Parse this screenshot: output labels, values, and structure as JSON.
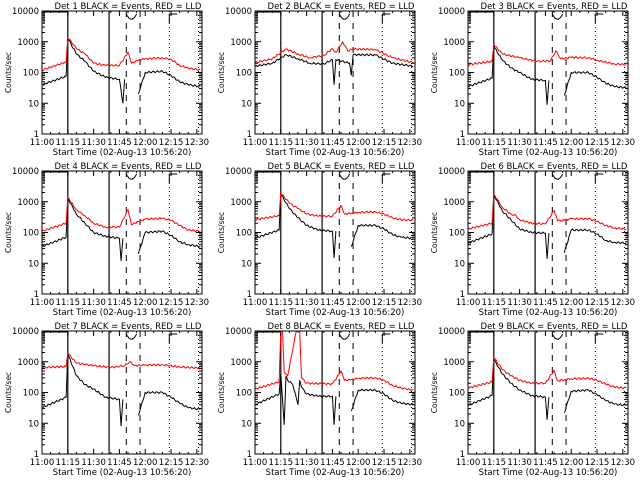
{
  "figure": {
    "xlabel": "Start Time (02-Aug-13 10:56:20)",
    "ylabel": "Counts/sec",
    "legend_text": "BLACK = Events, RED = LLD",
    "colors": {
      "events": "#000000",
      "lld": "#ff0000",
      "axes": "#000000"
    }
  },
  "chart_data": [
    {
      "type": "line",
      "title": "Det 1",
      "xlabel": "Start Time (02-Aug-13 10:56:20)",
      "ylabel": "Counts/sec",
      "yscale": "log",
      "ylim": [
        1,
        10000
      ],
      "yticks": [
        "1",
        "10",
        "100",
        "1000",
        "10000"
      ],
      "xlim": [
        "11:00",
        "12:33"
      ],
      "xticks": [
        "11:00",
        "11:15",
        "11:30",
        "11:45",
        "12:00",
        "12:15",
        "12:30"
      ],
      "markers": {
        "solid": [
          "11:15",
          "11:39"
        ],
        "dashed": [
          "11:49",
          "11:57"
        ],
        "dotted": [
          "12:14",
          "12:31"
        ],
        "labels": [
          "I",
          "S",
          "E"
        ]
      },
      "series": [
        {
          "name": "Events (BLACK)",
          "x_min": [
            0,
            14,
            15,
            20,
            25,
            30,
            37,
            45,
            47,
            48,
            55,
            56,
            60,
            70,
            75,
            80,
            85,
            92
          ],
          "values": [
            40,
            75,
            1300,
            400,
            230,
            110,
            70,
            60,
            10,
            60,
            null,
            20,
            100,
            110,
            80,
            50,
            40,
            35
          ]
        },
        {
          "name": "LLD (RED)",
          "x_min": [
            0,
            14,
            15,
            20,
            25,
            30,
            37,
            45,
            50,
            52,
            56,
            60,
            70,
            75,
            80,
            85,
            92
          ],
          "values": [
            120,
            220,
            1400,
            600,
            400,
            200,
            170,
            170,
            450,
            200,
            250,
            280,
            300,
            270,
            170,
            140,
            120
          ]
        }
      ]
    },
    {
      "type": "line",
      "title": "Det 2",
      "yscale": "log",
      "ylim": [
        1,
        10000
      ],
      "xticks": [
        "11:00",
        "11:15",
        "11:30",
        "11:45",
        "12:00",
        "12:15",
        "12:30"
      ],
      "series": [
        {
          "name": "Events (BLACK)",
          "x_min": [
            0,
            10,
            18,
            25,
            32,
            40,
            45,
            46,
            47,
            55,
            56,
            57,
            70,
            80,
            92
          ],
          "values": [
            160,
            200,
            380,
            280,
            200,
            190,
            260,
            40,
            260,
            200,
            80,
            380,
            370,
            200,
            160
          ]
        },
        {
          "name": "LLD (RED)",
          "x_min": [
            0,
            10,
            18,
            25,
            32,
            40,
            45,
            47,
            51,
            54,
            57,
            70,
            80,
            92
          ],
          "values": [
            210,
            280,
            580,
            400,
            300,
            360,
            600,
            450,
            1000,
            500,
            580,
            560,
            300,
            210
          ]
        }
      ]
    },
    {
      "type": "line",
      "title": "Det 3",
      "yscale": "log",
      "ylim": [
        1,
        10000
      ],
      "xticks": [
        "11:00",
        "11:15",
        "11:30",
        "11:45",
        "12:00",
        "12:15",
        "12:30"
      ],
      "series": [
        {
          "name": "Events (BLACK)",
          "x_min": [
            0,
            14,
            15,
            20,
            25,
            30,
            37,
            45,
            46,
            47,
            55,
            56,
            60,
            70,
            75,
            80,
            85,
            92
          ],
          "values": [
            35,
            65,
            700,
            250,
            140,
            100,
            60,
            55,
            9,
            55,
            null,
            18,
            100,
            100,
            70,
            45,
            35,
            32
          ]
        },
        {
          "name": "LLD (RED)",
          "x_min": [
            0,
            14,
            15,
            20,
            30,
            40,
            48,
            51,
            54,
            60,
            70,
            75,
            85,
            92
          ],
          "values": [
            180,
            230,
            800,
            400,
            300,
            230,
            240,
            500,
            280,
            310,
            300,
            250,
            190,
            180
          ]
        }
      ]
    },
    {
      "type": "line",
      "title": "Det 4",
      "yscale": "log",
      "ylim": [
        1,
        10000
      ],
      "xticks": [
        "11:00",
        "11:15",
        "11:30",
        "11:45",
        "12:00",
        "12:15",
        "12:30"
      ],
      "series": [
        {
          "name": "Events (BLACK)",
          "x_min": [
            0,
            14,
            15,
            20,
            25,
            30,
            37,
            45,
            46,
            47,
            55,
            56,
            60,
            70,
            75,
            80,
            85,
            92
          ],
          "values": [
            35,
            70,
            1300,
            400,
            200,
            100,
            75,
            65,
            12,
            65,
            null,
            20,
            100,
            110,
            80,
            50,
            40,
            35
          ]
        },
        {
          "name": "LLD (RED)",
          "x_min": [
            0,
            14,
            15,
            20,
            25,
            30,
            37,
            45,
            50,
            52,
            56,
            60,
            70,
            75,
            80,
            85,
            92
          ],
          "values": [
            110,
            200,
            1400,
            550,
            350,
            200,
            150,
            150,
            550,
            180,
            230,
            270,
            290,
            250,
            170,
            120,
            110
          ]
        }
      ]
    },
    {
      "type": "line",
      "title": "Det 5",
      "yscale": "log",
      "ylim": [
        1,
        10000
      ],
      "xticks": [
        "11:00",
        "11:15",
        "11:30",
        "11:45",
        "12:00",
        "12:15",
        "12:30"
      ],
      "series": [
        {
          "name": "Events (BLACK)",
          "x_min": [
            0,
            14,
            15,
            20,
            25,
            30,
            37,
            45,
            46,
            47,
            55,
            56,
            60,
            70,
            75,
            80,
            85,
            92
          ],
          "values": [
            65,
            120,
            1800,
            600,
            300,
            170,
            120,
            110,
            15,
            110,
            null,
            35,
            170,
            170,
            130,
            85,
            70,
            65
          ]
        },
        {
          "name": "LLD (RED)",
          "x_min": [
            0,
            14,
            15,
            20,
            25,
            30,
            37,
            45,
            50,
            52,
            56,
            60,
            70,
            75,
            80,
            85,
            92
          ],
          "values": [
            260,
            350,
            1900,
            900,
            600,
            400,
            340,
            340,
            750,
            400,
            420,
            450,
            470,
            400,
            300,
            260,
            250
          ]
        }
      ]
    },
    {
      "type": "line",
      "title": "Det 6",
      "yscale": "log",
      "ylim": [
        1,
        10000
      ],
      "xticks": [
        "11:00",
        "11:15",
        "11:30",
        "11:45",
        "12:00",
        "12:15",
        "12:30"
      ],
      "series": [
        {
          "name": "Events (BLACK)",
          "x_min": [
            0,
            14,
            15,
            20,
            25,
            30,
            37,
            45,
            46,
            47,
            55,
            56,
            60,
            70,
            75,
            80,
            85,
            92
          ],
          "values": [
            45,
            90,
            1700,
            500,
            260,
            130,
            100,
            95,
            14,
            95,
            null,
            22,
            120,
            120,
            90,
            55,
            48,
            45
          ]
        },
        {
          "name": "LLD (RED)",
          "x_min": [
            0,
            14,
            15,
            20,
            25,
            28,
            30,
            37,
            45,
            50,
            52,
            56,
            60,
            70,
            75,
            80,
            85,
            92
          ],
          "values": [
            130,
            200,
            1800,
            650,
            400,
            350,
            260,
            200,
            190,
            520,
            240,
            250,
            280,
            280,
            230,
            170,
            140,
            130
          ]
        }
      ]
    },
    {
      "type": "line",
      "title": "Det 7",
      "yscale": "log",
      "ylim": [
        1,
        10000
      ],
      "xticks": [
        "11:00",
        "11:15",
        "11:30",
        "11:45",
        "12:00",
        "12:15",
        "12:30"
      ],
      "series": [
        {
          "name": "Events (BLACK)",
          "x_min": [
            0,
            14,
            15,
            20,
            25,
            30,
            37,
            45,
            46,
            47,
            55,
            56,
            60,
            70,
            75,
            80,
            85,
            92
          ],
          "values": [
            32,
            70,
            1800,
            350,
            180,
            130,
            70,
            60,
            8,
            60,
            null,
            18,
            100,
            100,
            70,
            45,
            32,
            28
          ]
        },
        {
          "name": "LLD (RED)",
          "x_min": [
            0,
            14,
            15,
            20,
            30,
            40,
            48,
            51,
            54,
            60,
            70,
            80,
            92
          ],
          "values": [
            650,
            700,
            1900,
            900,
            750,
            650,
            750,
            1000,
            750,
            780,
            800,
            680,
            620
          ]
        }
      ]
    },
    {
      "type": "line",
      "title": "Det 8",
      "yscale": "log",
      "ylim": [
        1,
        10000
      ],
      "xticks": [
        "11:00",
        "11:15",
        "11:30",
        "11:45",
        "12:00",
        "12:15",
        "12:30"
      ],
      "series": [
        {
          "name": "Events (BLACK)",
          "x_min": [
            0,
            14,
            15,
            17,
            18,
            19,
            22,
            25,
            26,
            27,
            30,
            37,
            45,
            46,
            47,
            55,
            56,
            60,
            70,
            75,
            80,
            85,
            92
          ],
          "values": [
            40,
            90,
            400,
            9,
            350,
            250,
            180,
            40,
            250,
            150,
            90,
            75,
            75,
            9,
            75,
            null,
            25,
            120,
            120,
            90,
            55,
            45,
            40
          ]
        },
        {
          "name": "LLD (RED)",
          "x_min": [
            0,
            14,
            15,
            16,
            17,
            18,
            19,
            24,
            25,
            26,
            27,
            30,
            45,
            50,
            52,
            56,
            60,
            70,
            75,
            80,
            85,
            92
          ],
          "values": [
            130,
            220,
            10000,
            10000,
            450,
            400,
            350,
            10000,
            10000,
            10000,
            300,
            200,
            190,
            500,
            250,
            260,
            290,
            300,
            250,
            170,
            140,
            120
          ]
        }
      ]
    },
    {
      "type": "line",
      "title": "Det 9",
      "yscale": "log",
      "ylim": [
        1,
        10000
      ],
      "xticks": [
        "11:00",
        "11:15",
        "11:30",
        "11:45",
        "12:00",
        "12:15",
        "12:30"
      ],
      "series": [
        {
          "name": "Events (BLACK)",
          "x_min": [
            0,
            14,
            15,
            20,
            25,
            30,
            37,
            45,
            46,
            47,
            55,
            56,
            60,
            70,
            75,
            80,
            85,
            92
          ],
          "values": [
            38,
            80,
            1200,
            400,
            200,
            120,
            80,
            70,
            13,
            70,
            null,
            22,
            110,
            120,
            85,
            55,
            42,
            38
          ]
        },
        {
          "name": "LLD (RED)",
          "x_min": [
            0,
            14,
            15,
            20,
            25,
            30,
            37,
            45,
            50,
            52,
            56,
            60,
            70,
            75,
            80,
            85,
            92
          ],
          "values": [
            140,
            220,
            1400,
            550,
            350,
            250,
            200,
            200,
            520,
            240,
            260,
            280,
            290,
            250,
            190,
            150,
            140
          ]
        }
      ]
    }
  ]
}
